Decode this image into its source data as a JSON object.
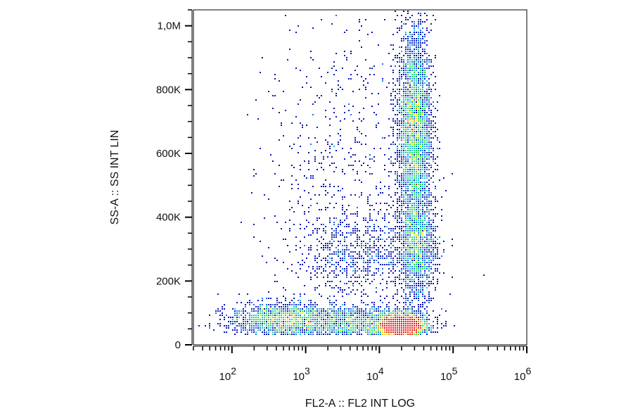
{
  "chart_data": {
    "type": "scatter",
    "subtype": "flow-cytometry-density-dot-plot",
    "title": "",
    "xlabel": "FL2-A :: FL2 INT LOG",
    "ylabel": "SS-A :: SS INT LIN",
    "x_scale": "log",
    "x_range": [
      30,
      1000000
    ],
    "y_range": [
      0,
      1050000
    ],
    "x_ticks": [
      {
        "value": 100,
        "base": "10",
        "exp": "2"
      },
      {
        "value": 1000,
        "base": "10",
        "exp": "3"
      },
      {
        "value": 10000,
        "base": "10",
        "exp": "4"
      },
      {
        "value": 100000,
        "base": "10",
        "exp": "5"
      },
      {
        "value": 1000000,
        "base": "10",
        "exp": "6"
      }
    ],
    "y_ticks": [
      {
        "value": 0,
        "label": "0"
      },
      {
        "value": 200000,
        "label": "200K"
      },
      {
        "value": 400000,
        "label": "400K"
      },
      {
        "value": 600000,
        "label": "600K"
      },
      {
        "value": 800000,
        "label": "800K"
      },
      {
        "value": 1000000,
        "label": "1,0M"
      }
    ],
    "grid": false,
    "color_scale": [
      "#0a14b4",
      "#1e6ee6",
      "#14c8c8",
      "#28dc50",
      "#e6e628",
      "#f08c14",
      "#e61414"
    ],
    "populations": [
      {
        "x_center": 20000,
        "y_center": 60000,
        "x_spread_decades": 0.15,
        "y_spread": 18000,
        "density": "high"
      },
      {
        "x_center": 30000,
        "y_center": 680000,
        "x_spread_decades": 0.12,
        "y_spread": 160000,
        "density": "high"
      },
      {
        "x_center": 32000,
        "y_center": 300000,
        "x_spread_decades": 0.14,
        "y_spread": 90000,
        "density": "medium"
      },
      {
        "x_center": 450,
        "y_center": 80000,
        "x_spread_decades": 0.35,
        "y_spread": 25000,
        "density": "medium"
      },
      {
        "x_center": 4000,
        "y_center": 70000,
        "x_spread_decades": 0.5,
        "y_spread": 25000,
        "density": "medium"
      },
      {
        "x_center": 5000,
        "y_center": 280000,
        "x_spread_decades": 0.4,
        "y_spread": 70000,
        "density": "low"
      },
      {
        "x_center": 3000,
        "y_center": 550000,
        "x_spread_decades": 0.5,
        "y_spread": 250000,
        "density": "sparse"
      }
    ]
  }
}
